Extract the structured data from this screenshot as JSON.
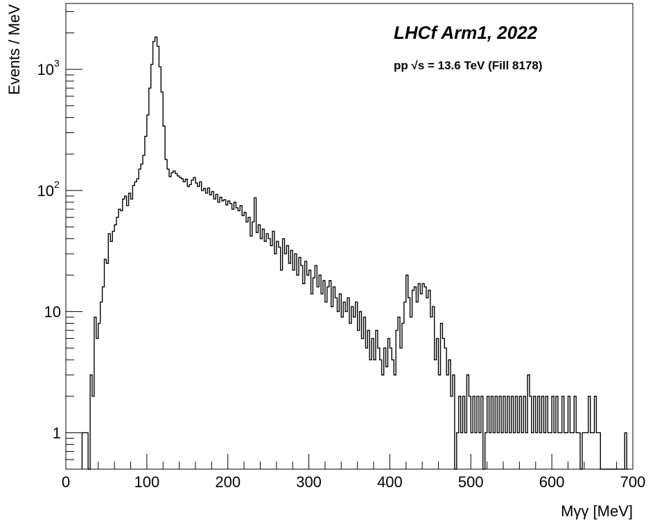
{
  "chart_data": {
    "type": "histogram",
    "title": "",
    "xlabel": "Mγγ [MeV]",
    "ylabel": "Events / MeV",
    "xlim": [
      0,
      700
    ],
    "ylim": [
      0.5,
      3500
    ],
    "yscale": "log",
    "grid": false,
    "bin_width": 2.5,
    "annotations": [
      {
        "text": "LHCf Arm1, 2022"
      },
      {
        "text": "pp  √s = 13.6 TeV (Fill 8178)"
      }
    ],
    "x_ticks": [
      "0",
      "100",
      "200",
      "300",
      "400",
      "500",
      "600",
      "700"
    ],
    "y_ticks": [
      {
        "base": "1",
        "exp": ""
      },
      {
        "base": "10",
        "exp": ""
      },
      {
        "base": "10",
        "exp": "2"
      },
      {
        "base": "10",
        "exp": "3"
      }
    ],
    "bins": [
      [
        20,
        1
      ],
      [
        22.5,
        1
      ],
      [
        25,
        1
      ],
      [
        27.5,
        0.35
      ],
      [
        30,
        3
      ],
      [
        32.5,
        2
      ],
      [
        35,
        9
      ],
      [
        37.5,
        6
      ],
      [
        40,
        8
      ],
      [
        42.5,
        12
      ],
      [
        45,
        16
      ],
      [
        47.5,
        27
      ],
      [
        50,
        25
      ],
      [
        52.5,
        44
      ],
      [
        55,
        38
      ],
      [
        57.5,
        46
      ],
      [
        60,
        52
      ],
      [
        62.5,
        60
      ],
      [
        65,
        70
      ],
      [
        67.5,
        68
      ],
      [
        70,
        85
      ],
      [
        72.5,
        90
      ],
      [
        75,
        75
      ],
      [
        77.5,
        95
      ],
      [
        80,
        85
      ],
      [
        82.5,
        110
      ],
      [
        85,
        118
      ],
      [
        87.5,
        125
      ],
      [
        90,
        150
      ],
      [
        92.5,
        165
      ],
      [
        95,
        195
      ],
      [
        97.5,
        280
      ],
      [
        100,
        420
      ],
      [
        102.5,
        700
      ],
      [
        105,
        1100
      ],
      [
        107.5,
        1700
      ],
      [
        110,
        1850
      ],
      [
        112.5,
        1550
      ],
      [
        115,
        1050
      ],
      [
        117.5,
        650
      ],
      [
        120,
        340
      ],
      [
        122.5,
        180
      ],
      [
        125,
        150
      ],
      [
        127.5,
        130
      ],
      [
        130,
        140
      ],
      [
        132.5,
        145
      ],
      [
        135,
        138
      ],
      [
        137.5,
        132
      ],
      [
        140,
        128
      ],
      [
        142.5,
        125
      ],
      [
        145,
        118
      ],
      [
        147.5,
        124
      ],
      [
        150,
        108
      ],
      [
        152.5,
        112
      ],
      [
        155,
        122
      ],
      [
        157.5,
        128
      ],
      [
        160,
        115
      ],
      [
        162.5,
        108
      ],
      [
        165,
        118
      ],
      [
        167.5,
        100
      ],
      [
        170,
        104
      ],
      [
        172.5,
        95
      ],
      [
        175,
        105
      ],
      [
        177.5,
        92
      ],
      [
        180,
        98
      ],
      [
        182.5,
        85
      ],
      [
        185,
        93
      ],
      [
        187.5,
        80
      ],
      [
        190,
        88
      ],
      [
        192.5,
        82
      ],
      [
        195,
        84
      ],
      [
        197.5,
        76
      ],
      [
        200,
        82
      ],
      [
        202.5,
        78
      ],
      [
        205,
        70
      ],
      [
        207.5,
        80
      ],
      [
        210,
        72
      ],
      [
        212.5,
        68
      ],
      [
        215,
        75
      ],
      [
        217.5,
        62
      ],
      [
        220,
        66
      ],
      [
        222.5,
        55
      ],
      [
        225,
        60
      ],
      [
        227.5,
        42
      ],
      [
        230,
        55
      ],
      [
        232.5,
        87
      ],
      [
        235,
        45
      ],
      [
        237.5,
        52
      ],
      [
        240,
        40
      ],
      [
        242.5,
        48
      ],
      [
        245,
        38
      ],
      [
        247.5,
        44
      ],
      [
        250,
        40
      ],
      [
        252.5,
        35
      ],
      [
        255,
        46
      ],
      [
        257.5,
        30
      ],
      [
        260,
        38
      ],
      [
        262.5,
        34
      ],
      [
        265,
        22
      ],
      [
        267.5,
        40
      ],
      [
        270,
        30
      ],
      [
        272.5,
        35
      ],
      [
        275,
        25
      ],
      [
        277.5,
        32
      ],
      [
        280,
        22
      ],
      [
        282.5,
        30
      ],
      [
        285,
        20
      ],
      [
        287.5,
        28
      ],
      [
        290,
        24
      ],
      [
        292.5,
        17
      ],
      [
        295,
        26
      ],
      [
        297.5,
        20
      ],
      [
        300,
        22
      ],
      [
        302.5,
        14
      ],
      [
        305,
        19
      ],
      [
        307.5,
        24
      ],
      [
        310,
        16
      ],
      [
        312.5,
        20
      ],
      [
        315,
        14
      ],
      [
        317.5,
        18
      ],
      [
        320,
        12
      ],
      [
        322.5,
        16
      ],
      [
        325,
        18
      ],
      [
        327.5,
        11
      ],
      [
        330,
        16
      ],
      [
        332.5,
        13
      ],
      [
        335,
        10
      ],
      [
        337.5,
        14
      ],
      [
        340,
        9
      ],
      [
        342.5,
        12
      ],
      [
        345,
        10
      ],
      [
        347.5,
        13
      ],
      [
        350,
        8
      ],
      [
        352.5,
        11
      ],
      [
        355,
        9
      ],
      [
        357.5,
        12
      ],
      [
        360,
        7
      ],
      [
        362.5,
        10
      ],
      [
        365,
        6
      ],
      [
        367.5,
        9
      ],
      [
        370,
        5
      ],
      [
        372.5,
        7
      ],
      [
        375,
        4
      ],
      [
        377.5,
        6
      ],
      [
        380,
        4
      ],
      [
        382.5,
        7
      ],
      [
        385,
        5
      ],
      [
        387.5,
        4
      ],
      [
        390,
        3
      ],
      [
        392.5,
        5
      ],
      [
        395,
        3.5
      ],
      [
        397.5,
        6
      ],
      [
        400,
        5
      ],
      [
        402.5,
        4
      ],
      [
        405,
        3
      ],
      [
        407.5,
        7
      ],
      [
        410,
        9
      ],
      [
        412.5,
        5
      ],
      [
        415,
        8
      ],
      [
        417.5,
        12
      ],
      [
        420,
        20
      ],
      [
        422.5,
        13
      ],
      [
        425,
        9
      ],
      [
        427.5,
        15
      ],
      [
        430,
        16
      ],
      [
        432.5,
        12
      ],
      [
        435,
        17
      ],
      [
        437.5,
        14
      ],
      [
        440,
        17
      ],
      [
        442.5,
        16
      ],
      [
        445,
        13
      ],
      [
        447.5,
        15
      ],
      [
        450,
        9
      ],
      [
        452.5,
        11
      ],
      [
        455,
        4
      ],
      [
        457.5,
        6
      ],
      [
        460,
        3
      ],
      [
        462.5,
        8
      ],
      [
        465,
        6
      ],
      [
        467.5,
        5
      ],
      [
        470,
        3
      ],
      [
        472.5,
        4
      ],
      [
        475,
        2
      ],
      [
        477.5,
        3
      ],
      [
        480,
        0.35
      ],
      [
        482.5,
        1
      ],
      [
        485,
        2
      ],
      [
        487.5,
        1
      ],
      [
        490,
        2
      ],
      [
        492.5,
        1
      ],
      [
        495,
        3
      ],
      [
        497.5,
        2
      ],
      [
        500,
        1
      ],
      [
        502.5,
        2
      ],
      [
        505,
        1
      ],
      [
        507.5,
        2
      ],
      [
        510,
        1
      ],
      [
        512.5,
        2
      ],
      [
        515,
        0.35
      ],
      [
        517.5,
        1
      ],
      [
        520,
        2
      ],
      [
        522.5,
        1
      ],
      [
        525,
        2
      ],
      [
        527.5,
        1
      ],
      [
        530,
        2
      ],
      [
        532.5,
        1
      ],
      [
        535,
        2
      ],
      [
        537.5,
        1
      ],
      [
        540,
        2
      ],
      [
        542.5,
        1
      ],
      [
        545,
        2
      ],
      [
        547.5,
        1
      ],
      [
        550,
        2
      ],
      [
        552.5,
        1
      ],
      [
        555,
        2
      ],
      [
        557.5,
        1
      ],
      [
        560,
        2
      ],
      [
        562.5,
        1
      ],
      [
        565,
        2
      ],
      [
        567.5,
        1
      ],
      [
        570,
        3
      ],
      [
        572.5,
        2
      ],
      [
        575,
        1
      ],
      [
        577.5,
        2
      ],
      [
        580,
        1
      ],
      [
        582.5,
        2
      ],
      [
        585,
        1
      ],
      [
        587.5,
        2
      ],
      [
        590,
        1
      ],
      [
        592.5,
        2
      ],
      [
        595,
        1
      ],
      [
        597.5,
        1
      ],
      [
        600,
        2
      ],
      [
        602.5,
        1
      ],
      [
        605,
        2
      ],
      [
        607.5,
        1
      ],
      [
        610,
        1
      ],
      [
        612.5,
        2
      ],
      [
        615,
        1
      ],
      [
        617.5,
        1
      ],
      [
        620,
        2
      ],
      [
        622.5,
        1
      ],
      [
        625,
        1
      ],
      [
        627.5,
        2
      ],
      [
        630,
        1
      ],
      [
        632.5,
        1
      ],
      [
        635,
        0.35
      ],
      [
        637.5,
        1
      ],
      [
        640,
        1
      ],
      [
        642.5,
        1
      ],
      [
        645,
        2
      ],
      [
        647.5,
        1
      ],
      [
        650,
        1
      ],
      [
        652.5,
        2
      ],
      [
        655,
        1
      ],
      [
        657.5,
        1
      ],
      [
        660,
        0.35
      ],
      [
        662.5,
        0.35
      ],
      [
        665,
        0.35
      ],
      [
        667.5,
        0.35
      ],
      [
        670,
        0.35
      ],
      [
        672.5,
        0.35
      ],
      [
        675,
        0.35
      ],
      [
        677.5,
        0.35
      ],
      [
        680,
        0.35
      ],
      [
        682.5,
        0.35
      ],
      [
        685,
        0.35
      ],
      [
        687.5,
        0.35
      ],
      [
        690,
        1
      ],
      [
        692.5,
        0.35
      ]
    ]
  }
}
